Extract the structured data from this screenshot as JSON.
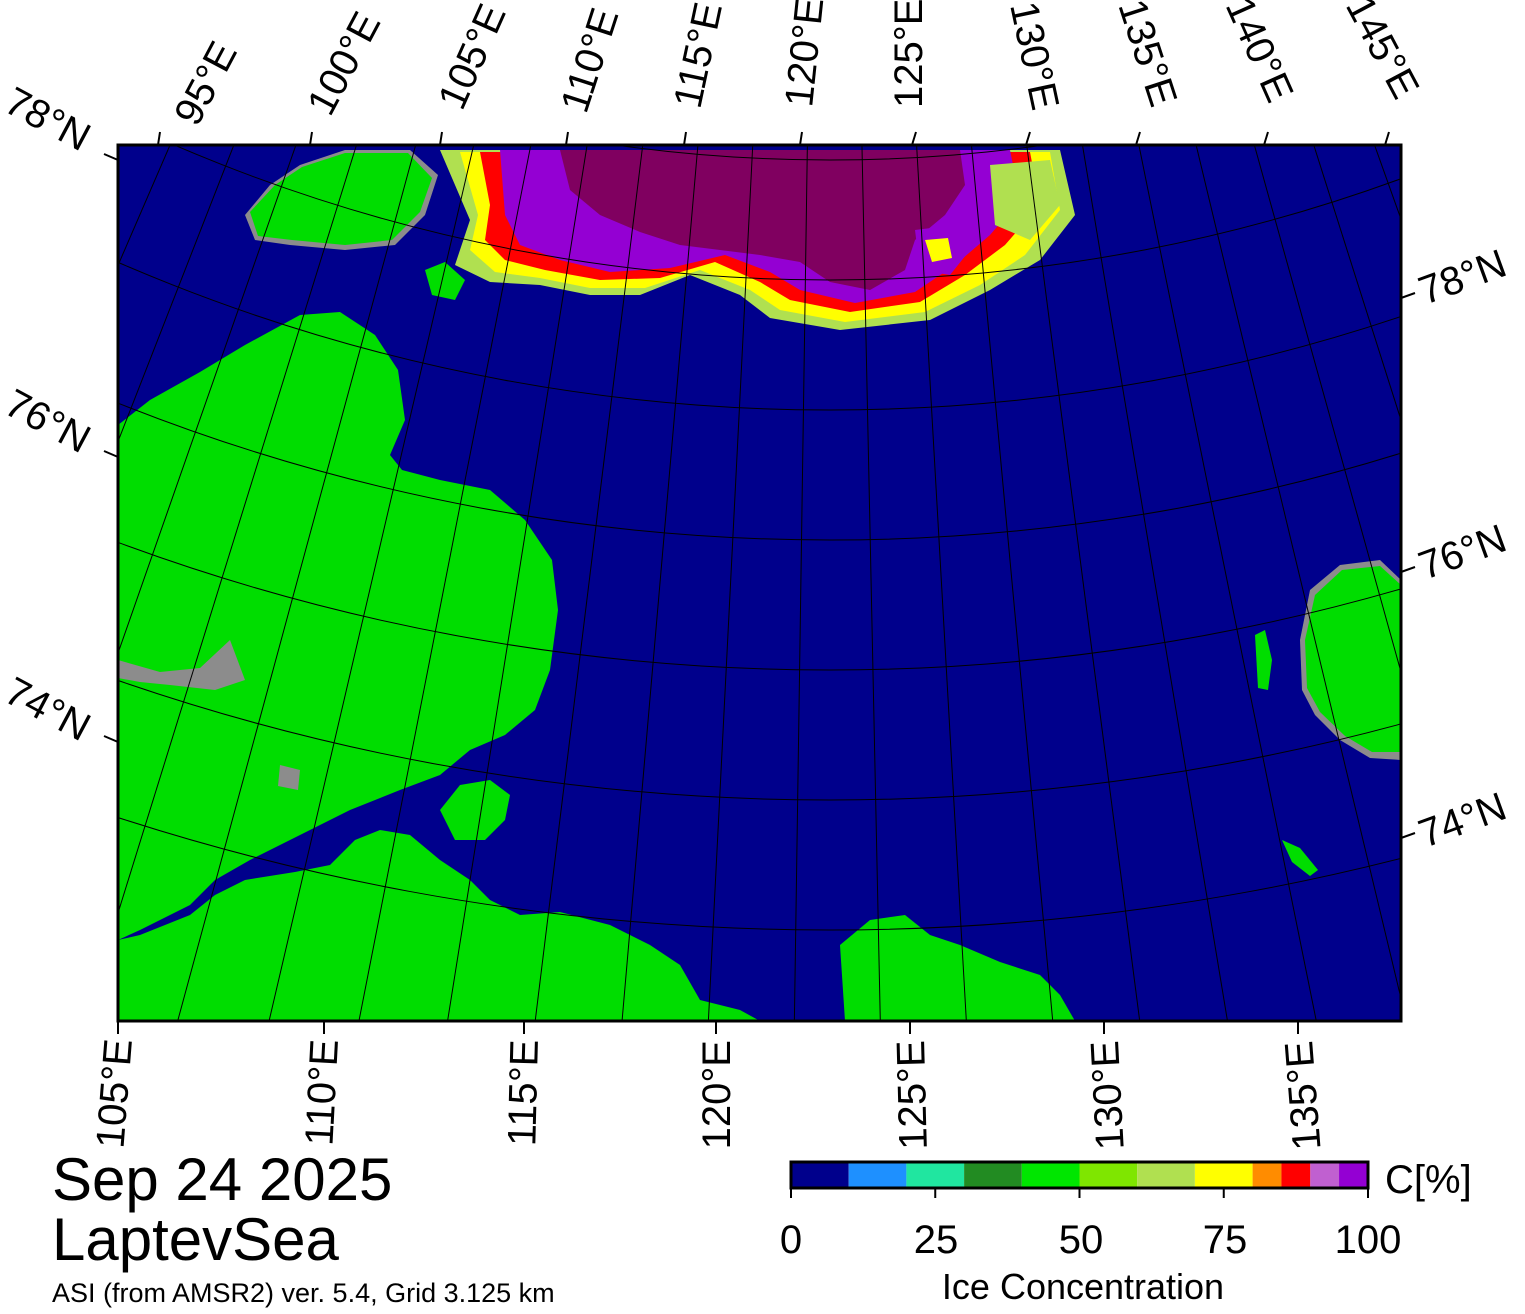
{
  "title": {
    "date": "Sep 24 2025",
    "region": "LaptevSea",
    "product": "ASI (from AMSR2) ver. 5.4,  Grid 3.125 km"
  },
  "colorbar": {
    "title": "Ice Concentration",
    "unit": "C[%]",
    "ticks": [
      "0",
      "25",
      "50",
      "75",
      "100"
    ],
    "range": [
      0,
      100
    ],
    "colors": [
      "#00008c",
      "#1e90ff",
      "#20e6a0",
      "#228b22",
      "#00e600",
      "#7fe600",
      "#b0e050",
      "#ffff00",
      "#ff8c00",
      "#ff0000",
      "#c060d0",
      "#9400d3",
      "#800060"
    ]
  },
  "map_colors": {
    "ocean": "#00008c",
    "land": "#00dd00",
    "land_mask_gray": "#8c8c8c",
    "ice_high": "#800060",
    "ice_purple": "#9400d3",
    "ice_red": "#ff0000",
    "ice_yellow": "#ffff00",
    "ice_lightgreen": "#b0e050"
  },
  "axes": {
    "top_lon_labels": [
      "95°E",
      "100°E",
      "105°E",
      "110°E",
      "115°E",
      "120°E",
      "125°E",
      "130°E",
      "135°E",
      "140°E",
      "145°E"
    ],
    "bottom_lon_labels": [
      "105°E",
      "110°E",
      "115°E",
      "120°E",
      "125°E",
      "130°E",
      "135°E"
    ],
    "left_lat_labels": [
      "78°N",
      "76°N",
      "74°N"
    ],
    "right_lat_labels": [
      "78°N",
      "76°N",
      "74°N"
    ]
  }
}
